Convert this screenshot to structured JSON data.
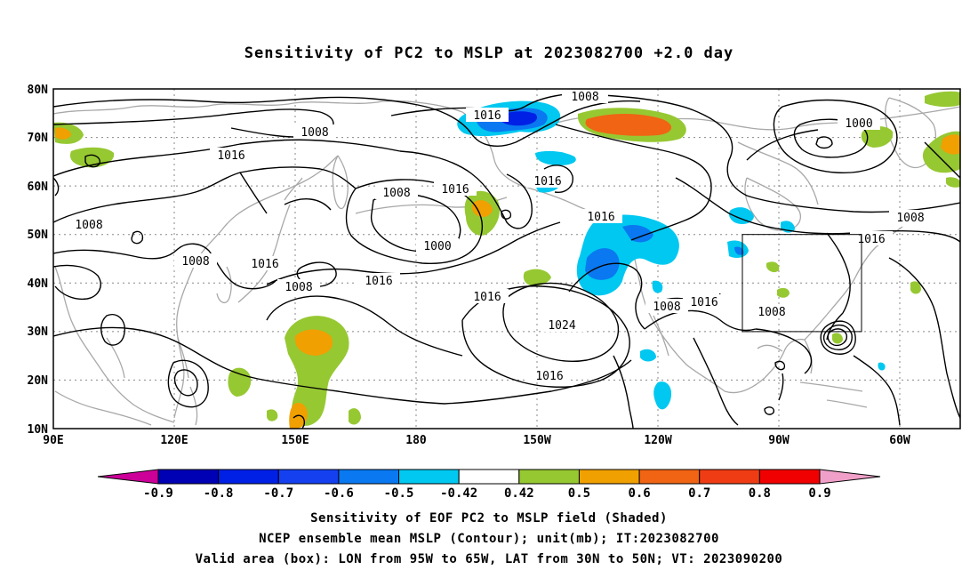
{
  "title": "Sensitivity of PC2 to MSLP at 2023082700 +2.0 day",
  "lat_labels": [
    "80N",
    "70N",
    "60N",
    "50N",
    "40N",
    "30N",
    "20N",
    "10N"
  ],
  "lon_labels": [
    "90E",
    "120E",
    "150E",
    "180",
    "150W",
    "120W",
    "90W",
    "60W"
  ],
  "contour_labels": [
    "1008",
    "1016",
    "1008",
    "1000",
    "1016",
    "1008",
    "1016",
    "1016",
    "1008",
    "1016",
    "1008",
    "1016",
    "1016",
    "1024",
    "1016",
    "1008",
    "1016",
    "1008",
    "1016",
    "1000",
    "1008",
    "1016"
  ],
  "colorbar": {
    "labels": [
      "-0.9",
      "-0.8",
      "-0.7",
      "-0.6",
      "-0.5",
      "-0.42",
      "0.42",
      "0.5",
      "0.6",
      "0.7",
      "0.8",
      "0.9"
    ],
    "colors": [
      "#cc0099",
      "#0000b4",
      "#0020e6",
      "#1440f0",
      "#0a78f0",
      "#00c8f0",
      "#ffffff",
      "#96c832",
      "#f0a000",
      "#f06414",
      "#f03c14",
      "#f00000",
      "#f0a0c8"
    ]
  },
  "valid_box": {
    "lon_min": -95,
    "lon_max": -65,
    "lat_min": 30,
    "lat_max": 50
  },
  "captions": [
    "Sensitivity of EOF PC2 to MSLP field (Shaded)",
    "NCEP ensemble mean MSLP (Contour); unit(mb); IT:2023082700",
    "Valid area (box): LON from 95W to 65W, LAT from 30N to 50N; VT: 2023090200"
  ]
}
